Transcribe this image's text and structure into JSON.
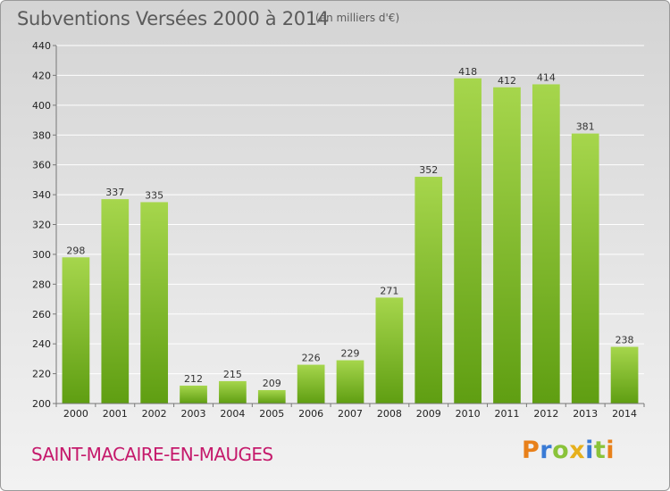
{
  "header": {
    "title": "Subventions Versées 2000 à 2014",
    "unit_note": "(en milliers d'€)"
  },
  "commune": "SAINT-MACAIRE-EN-MAUGES",
  "logo": {
    "text": "Proxiti",
    "letter_colors": [
      "#e8801a",
      "#3a7bd5",
      "#8ac33a",
      "#e6b01c",
      "#3a7bd5",
      "#8ac33a",
      "#e8801a"
    ]
  },
  "colors": {
    "bar_light": "#a6d64c",
    "bar_dark": "#5f9e12",
    "grid": "#ffffff",
    "axis": "#777777",
    "title": "#5b5b5b",
    "commune": "#c5196b"
  },
  "chart_data": {
    "type": "bar",
    "title": "Subventions Versées 2000 à 2014",
    "subtitle": "(en milliers d'€)",
    "categories": [
      "2000",
      "2001",
      "2002",
      "2003",
      "2004",
      "2005",
      "2006",
      "2007",
      "2008",
      "2009",
      "2010",
      "2011",
      "2012",
      "2013",
      "2014"
    ],
    "values": [
      298,
      337,
      335,
      212,
      215,
      209,
      226,
      229,
      271,
      352,
      418,
      412,
      414,
      381,
      238
    ],
    "ylim": [
      200,
      440
    ],
    "yticks": [
      200,
      220,
      240,
      260,
      280,
      300,
      320,
      340,
      360,
      380,
      400,
      420,
      440
    ],
    "grid": true,
    "data_labels": true,
    "legend": "none"
  }
}
